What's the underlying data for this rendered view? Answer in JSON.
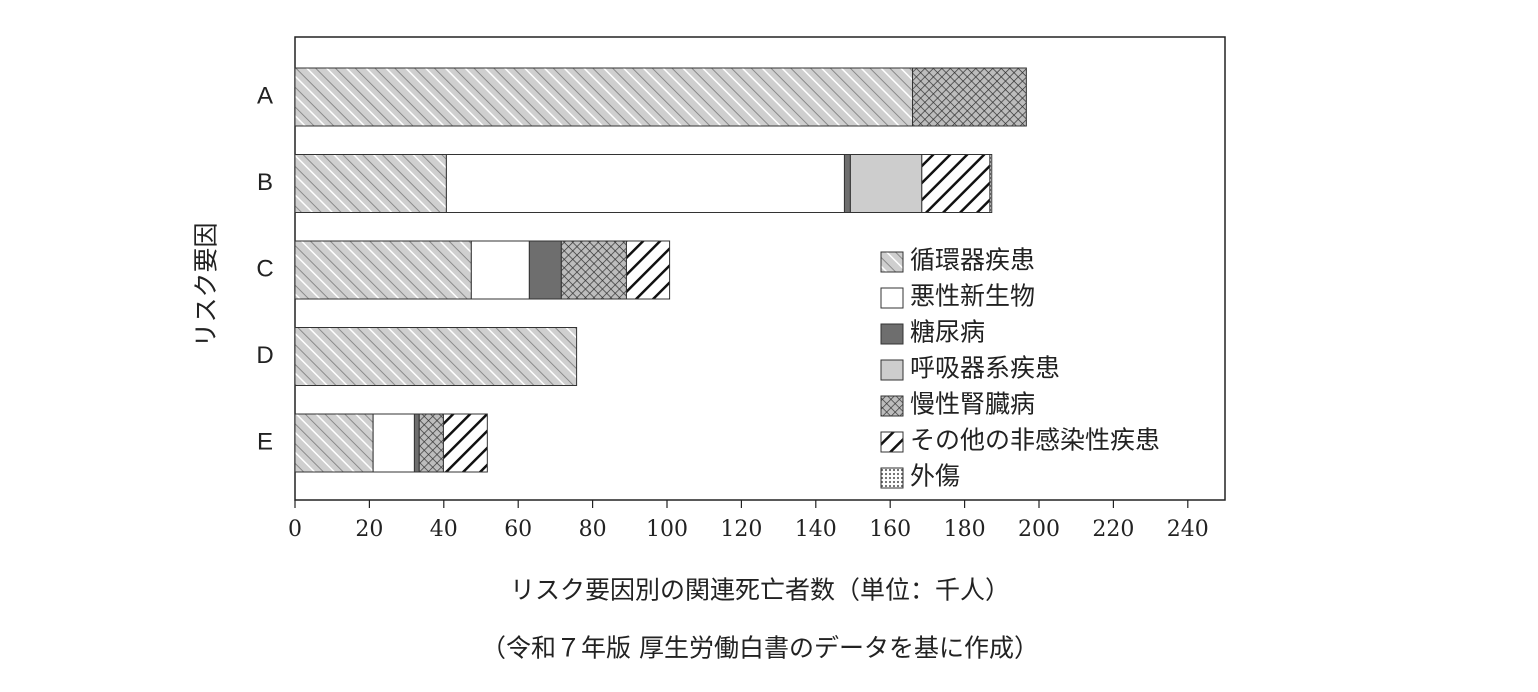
{
  "chart_data": {
    "type": "stacked-bar-horizontal",
    "y_label": "リスク要因",
    "x_label": "リスク要因別の関連死亡者数（単位：千人）",
    "note": "（令和７年版 厚生労働白書のデータを基に作成）",
    "categories": [
      "A",
      "B",
      "C",
      "D",
      "E"
    ],
    "series": [
      {
        "name": "循環器疾患",
        "pattern": "hatch-light",
        "values": [
          166,
          40.7,
          47.4,
          75.7,
          21
        ]
      },
      {
        "name": "悪性新生物",
        "pattern": "white",
        "values": [
          null,
          107,
          15.6,
          null,
          11.1
        ]
      },
      {
        "name": "糖尿病",
        "pattern": "dark",
        "values": [
          null,
          1.6,
          8.6,
          null,
          1.3
        ]
      },
      {
        "name": "呼吸器系疾患",
        "pattern": "light-gray",
        "values": [
          null,
          19.2,
          null,
          null,
          null
        ]
      },
      {
        "name": "慢性腎臓病",
        "pattern": "crosshatch",
        "values": [
          30.6,
          null,
          17.5,
          null,
          6.5
        ]
      },
      {
        "name": "その他の非感染性疾患",
        "pattern": "hatch-bold",
        "values": [
          null,
          18.3,
          11.6,
          null,
          11.8
        ]
      },
      {
        "name": "外傷",
        "pattern": "dots",
        "values": [
          null,
          0.5,
          null,
          null,
          null
        ]
      }
    ],
    "xlim": [
      0,
      250
    ],
    "xticks": [
      0,
      20,
      40,
      60,
      80,
      100,
      120,
      140,
      160,
      180,
      200,
      220,
      240
    ]
  }
}
